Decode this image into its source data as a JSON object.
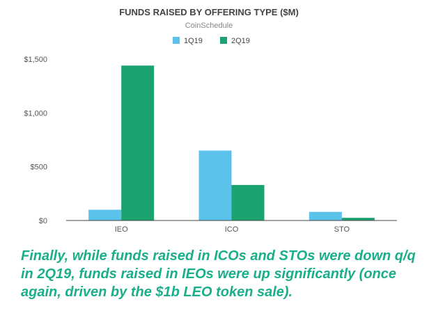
{
  "chart_data": {
    "type": "bar",
    "title": "FUNDS RAISED BY OFFERING TYPE ($M)",
    "subtitle": "CoinSchedule",
    "categories": [
      "IEO",
      "ICO",
      "STO"
    ],
    "series": [
      {
        "name": "1Q19",
        "color": "#5bc2ec",
        "values": [
          100,
          650,
          80
        ]
      },
      {
        "name": "2Q19",
        "color": "#1aa36f",
        "values": [
          1440,
          330,
          25
        ]
      }
    ],
    "ylim": [
      0,
      1500
    ],
    "yticks": [
      0,
      500,
      1000,
      1500
    ],
    "ytick_labels": [
      "$0",
      "$500",
      "$1,000",
      "$1,500"
    ],
    "legend": "top-center",
    "grid": false
  },
  "caption": "Finally, while funds raised in ICOs and STOs were down q/q in 2Q19, funds raised in IEOs were up significantly (once again, driven by the $1b LEO token sale)."
}
